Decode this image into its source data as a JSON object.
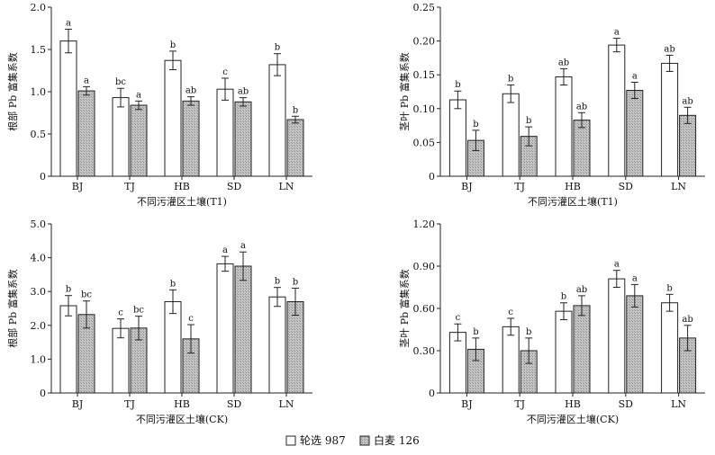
{
  "colors": {
    "series_1": "#ffffff",
    "series_2": "#bdbdbd",
    "stroke": "#222222"
  },
  "legend": {
    "items": [
      "轮选 987",
      "白麦 126"
    ]
  },
  "chart_data": [
    {
      "type": "bar",
      "categories": [
        "BJ",
        "TJ",
        "HB",
        "SD",
        "LN"
      ],
      "xlabel": "不同污灌区土壤(T1)",
      "ylabel": "根部 Pb 富集系数",
      "ylim": [
        0,
        2.0
      ],
      "yticks": [
        "0",
        "0.5",
        "1.0",
        "1.5",
        "2.0"
      ],
      "series": [
        {
          "name": "轮选 987",
          "values": [
            1.6,
            0.93,
            1.37,
            1.03,
            1.32
          ],
          "errors": [
            0.14,
            0.11,
            0.11,
            0.13,
            0.13
          ],
          "letters": [
            "a",
            "bc",
            "b",
            "c",
            "b"
          ]
        },
        {
          "name": "白麦 126",
          "values": [
            1.01,
            0.84,
            0.89,
            0.88,
            0.67
          ],
          "errors": [
            0.05,
            0.05,
            0.05,
            0.05,
            0.04
          ],
          "letters": [
            "a",
            "a",
            "ab",
            "ab",
            "b"
          ]
        }
      ]
    },
    {
      "type": "bar",
      "categories": [
        "BJ",
        "TJ",
        "HB",
        "SD",
        "LN"
      ],
      "xlabel": "不同污灌区土壤(T1)",
      "ylabel": "茎叶 Pb 富集系数",
      "ylim": [
        0,
        0.25
      ],
      "yticks": [
        "0",
        "0.05",
        "0.10",
        "0.15",
        "0.20",
        "0.25"
      ],
      "series": [
        {
          "name": "轮选 987",
          "values": [
            0.113,
            0.122,
            0.147,
            0.194,
            0.167
          ],
          "errors": [
            0.013,
            0.013,
            0.012,
            0.01,
            0.012
          ],
          "letters": [
            "b",
            "b",
            "ab",
            "a",
            "ab"
          ]
        },
        {
          "name": "白麦 126",
          "values": [
            0.053,
            0.059,
            0.083,
            0.127,
            0.09
          ],
          "errors": [
            0.015,
            0.014,
            0.011,
            0.012,
            0.012
          ],
          "letters": [
            "b",
            "b",
            "ab",
            "a",
            "ab"
          ]
        }
      ]
    },
    {
      "type": "bar",
      "categories": [
        "BJ",
        "TJ",
        "HB",
        "SD",
        "LN"
      ],
      "xlabel": "不同污灌区土壤(CK)",
      "ylabel": "根部 Pb 富集系数",
      "ylim": [
        0,
        5.0
      ],
      "yticks": [
        "0",
        "1.0",
        "2.0",
        "3.0",
        "4.0",
        "5.0"
      ],
      "series": [
        {
          "name": "轮选 987",
          "values": [
            2.58,
            1.91,
            2.7,
            3.82,
            2.84
          ],
          "errors": [
            0.3,
            0.28,
            0.35,
            0.22,
            0.28
          ],
          "letters": [
            "b",
            "c",
            "b",
            "a",
            "b"
          ]
        },
        {
          "name": "白麦 126",
          "values": [
            2.32,
            1.92,
            1.6,
            3.75,
            2.7
          ],
          "errors": [
            0.4,
            0.35,
            0.42,
            0.42,
            0.4
          ],
          "letters": [
            "bc",
            "bc",
            "c",
            "a",
            "b"
          ]
        }
      ]
    },
    {
      "type": "bar",
      "categories": [
        "BJ",
        "TJ",
        "HB",
        "SD",
        "LN"
      ],
      "xlabel": "不同污灌区土壤(CK)",
      "ylabel": "茎叶 Pb 富集系数",
      "ylim": [
        0,
        1.2
      ],
      "yticks": [
        "0",
        "0.30",
        "0.60",
        "0.90",
        "1.20"
      ],
      "series": [
        {
          "name": "轮选 987",
          "values": [
            0.43,
            0.47,
            0.58,
            0.81,
            0.64
          ],
          "errors": [
            0.06,
            0.06,
            0.06,
            0.06,
            0.06
          ],
          "letters": [
            "c",
            "c",
            "b",
            "a",
            "b"
          ]
        },
        {
          "name": "白麦 126",
          "values": [
            0.31,
            0.3,
            0.62,
            0.69,
            0.39
          ],
          "errors": [
            0.08,
            0.09,
            0.07,
            0.08,
            0.09
          ],
          "letters": [
            "b",
            "b",
            "ab",
            "a",
            "ab"
          ]
        }
      ]
    }
  ]
}
